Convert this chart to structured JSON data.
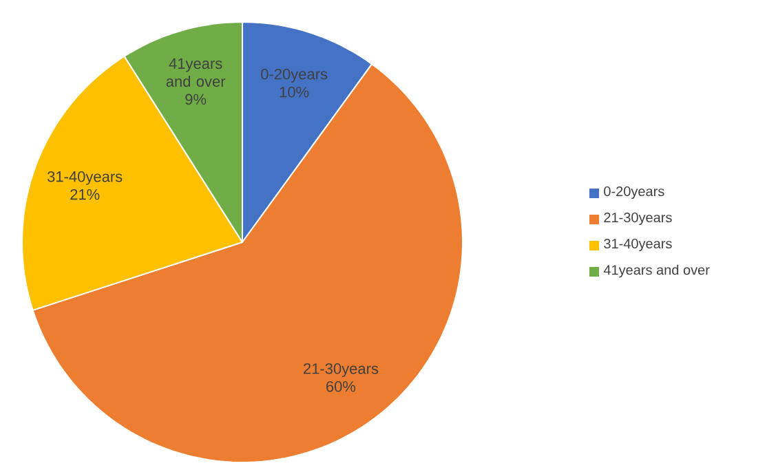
{
  "chart_data": {
    "type": "pie",
    "categories": [
      "0-20years",
      "21-30years",
      "31-40years",
      "41years and over"
    ],
    "values": [
      10,
      60,
      21,
      9
    ],
    "value_labels": [
      "10%",
      "60%",
      "21%",
      "9%"
    ],
    "colors": [
      "#4472c4",
      "#ed7d31",
      "#ffc000",
      "#70ad47"
    ],
    "legend": "right"
  }
}
